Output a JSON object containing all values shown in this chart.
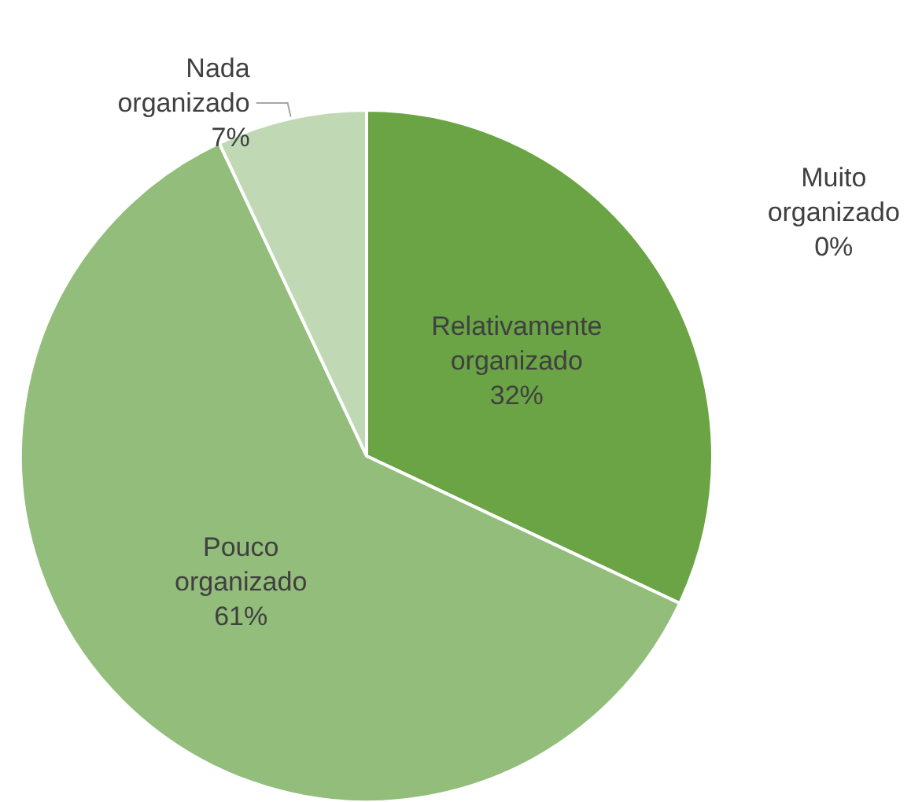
{
  "chart_data": {
    "type": "pie",
    "categories": [
      "Muito organizado",
      "Relativamente organizado",
      "Pouco organizado",
      "Nada organizado"
    ],
    "values": [
      0,
      32,
      61,
      7
    ],
    "colors": [
      "#4e7d32",
      "#6aa444",
      "#93bd7a",
      "#c0d9b4"
    ],
    "value_labels": [
      "0%",
      "32%",
      "61%",
      "7%"
    ],
    "legend": false
  }
}
